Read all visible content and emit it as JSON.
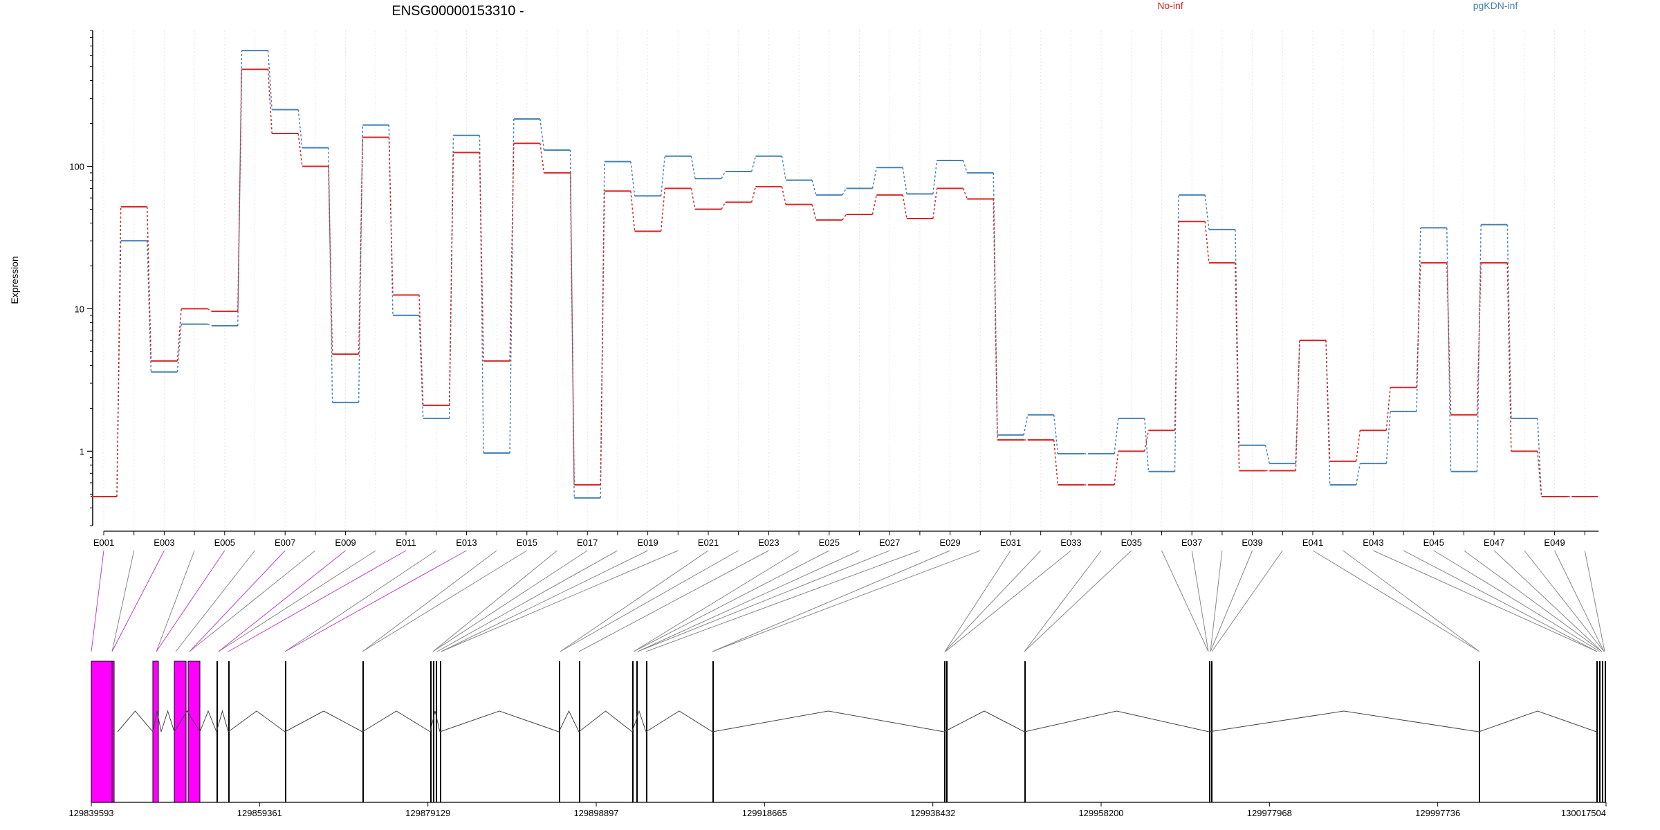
{
  "chart_data": {
    "type": "line",
    "title": "ENSG00000153310 -",
    "ylabel": "Expression",
    "yscale": "log",
    "ylim": [
      0.3,
      900
    ],
    "y_ticks": [
      {
        "value": 1,
        "label": "1"
      },
      {
        "value": 10,
        "label": "10"
      },
      {
        "value": 100,
        "label": "100"
      }
    ],
    "colors": {
      "No-inf": "#d62728",
      "pgKDN-inf": "#4682b4",
      "exon_fill": "#ff00ff"
    },
    "legend_position": "top-right",
    "exons": [
      "E001",
      "E002",
      "E003",
      "E004",
      "E005",
      "E006",
      "E007",
      "E008",
      "E009",
      "E010",
      "E011",
      "E012",
      "E013",
      "E014",
      "E015",
      "E016",
      "E017",
      "E018",
      "E019",
      "E020",
      "E021",
      "E022",
      "E023",
      "E024",
      "E025",
      "E026",
      "E027",
      "E028",
      "E029",
      "E030",
      "E031",
      "E032",
      "E033",
      "E034",
      "E035",
      "E036",
      "E037",
      "E038",
      "E039",
      "E040",
      "E041",
      "E042",
      "E043",
      "E044",
      "E045",
      "E046",
      "E047",
      "E048",
      "E049",
      "E050"
    ],
    "exon_labels_shown": [
      "E001",
      "E003",
      "E005",
      "E007",
      "E009",
      "E011",
      "E013",
      "E015",
      "E017",
      "E019",
      "E021",
      "E023",
      "E025",
      "E027",
      "E029",
      "E031",
      "E033",
      "E035",
      "E037",
      "E039",
      "E041",
      "E043",
      "E045",
      "E047",
      "E049"
    ],
    "series": [
      {
        "name": "No-inf",
        "values": [
          0.48,
          52,
          4.3,
          10,
          9.6,
          480,
          170,
          100,
          4.8,
          160,
          12.5,
          2.1,
          125,
          4.3,
          145,
          90,
          0.58,
          67,
          35,
          70,
          50,
          56,
          72,
          54,
          42,
          46,
          63,
          43,
          70,
          59,
          1.2,
          1.2,
          0.58,
          0.58,
          1.0,
          1.4,
          41,
          21,
          0.73,
          0.73,
          6.0,
          0.85,
          1.4,
          2.8,
          21,
          1.8,
          21,
          1.0,
          0.48,
          0.48
        ]
      },
      {
        "name": "pgKDN-inf",
        "values": [
          0.48,
          30,
          3.6,
          7.8,
          7.6,
          650,
          250,
          135,
          2.2,
          195,
          9.0,
          1.7,
          165,
          0.97,
          215,
          130,
          0.47,
          108,
          62,
          118,
          82,
          92,
          118,
          80,
          63,
          70,
          98,
          64,
          110,
          90,
          1.3,
          1.8,
          0.96,
          0.96,
          1.7,
          0.72,
          63,
          36,
          1.1,
          0.82,
          6.0,
          0.58,
          0.82,
          1.9,
          37,
          0.72,
          39,
          1.7,
          0.48,
          0.48
        ]
      }
    ],
    "coordinate_ticks": [
      "129839593",
      "129859361",
      "129879129",
      "129898897",
      "129918665",
      "129938432",
      "129958200",
      "129977968",
      "129997736",
      "130017504"
    ]
  }
}
